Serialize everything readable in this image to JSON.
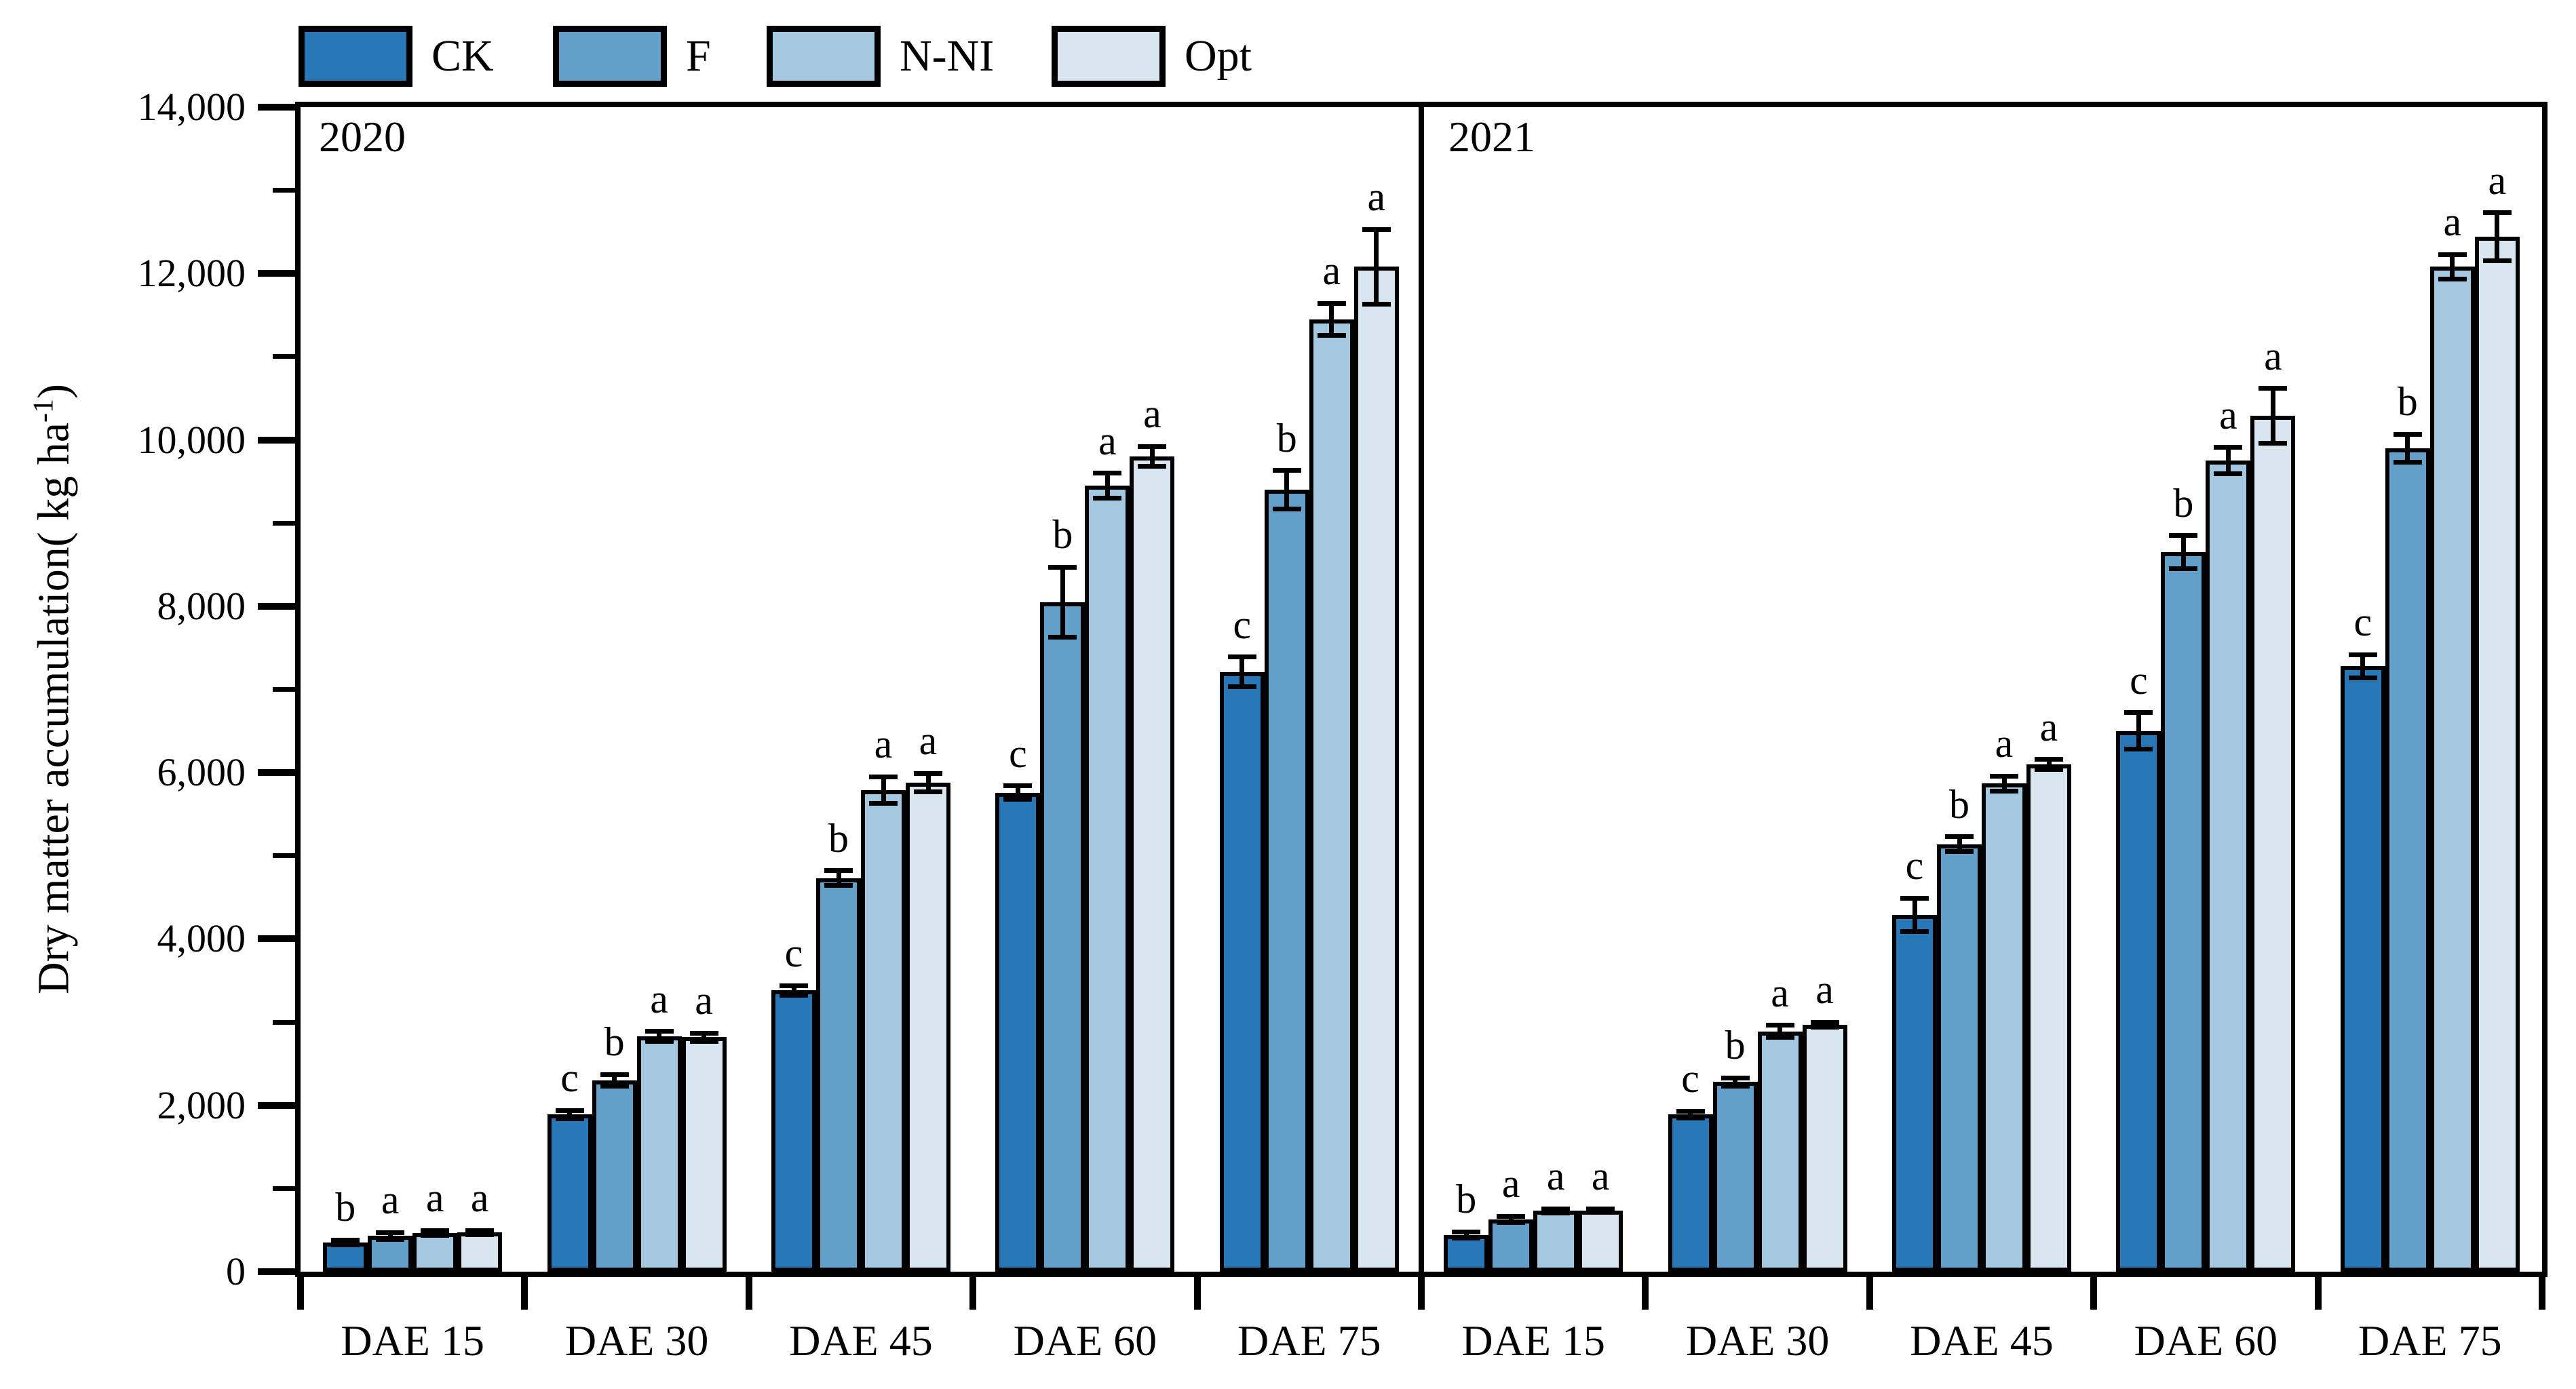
{
  "figure": {
    "background": "#ffffff",
    "axis_color": "#000000"
  },
  "legend": {
    "items": [
      {
        "label": "CK",
        "color": "#2878b8",
        "x": 440
      },
      {
        "label": "F",
        "color": "#62a0c9",
        "x": 815
      },
      {
        "label": "N-NI",
        "color": "#a3c8df",
        "x": 1130
      },
      {
        "label": "Opt",
        "color": "#d9e6f0",
        "x": 1550
      }
    ]
  },
  "y_axis": {
    "title_main": "Dry matter accumulation(  kg ha",
    "title_sup": "-1",
    "title_close": ")",
    "tick_labels": [
      "0",
      "2,000",
      "4,000",
      "6,000",
      "8,000",
      "10,000",
      "12,000",
      "14,000"
    ]
  },
  "chart_data": {
    "type": "bar",
    "title": "",
    "xlabel": "",
    "ylabel": "Dry matter accumulation( kg ha-1)",
    "ylim": [
      0,
      14000
    ],
    "ytick_step": 2000,
    "yminor_step": 1000,
    "grid": false,
    "legend_position": "top-left",
    "categories": [
      "DAE 15",
      "DAE 30",
      "DAE 45",
      "DAE 60",
      "DAE 75"
    ],
    "series_names": [
      "CK",
      "F",
      "N-NI",
      "Opt"
    ],
    "series_colors": [
      "#2878b8",
      "#62a0c9",
      "#a3c8df",
      "#d9e6f0"
    ],
    "panels": [
      {
        "year": "2020",
        "groups": [
          {
            "category": "DAE 15",
            "bars": [
              {
                "series": "CK",
                "value": 350,
                "err": 30,
                "letter": "b"
              },
              {
                "series": "F",
                "value": 430,
                "err": 40,
                "letter": "a"
              },
              {
                "series": "N-NI",
                "value": 465,
                "err": 30,
                "letter": "a"
              },
              {
                "series": "Opt",
                "value": 470,
                "err": 25,
                "letter": "a"
              }
            ]
          },
          {
            "category": "DAE 30",
            "bars": [
              {
                "series": "CK",
                "value": 1890,
                "err": 50,
                "letter": "c"
              },
              {
                "series": "F",
                "value": 2300,
                "err": 70,
                "letter": "b"
              },
              {
                "series": "N-NI",
                "value": 2830,
                "err": 60,
                "letter": "a"
              },
              {
                "series": "Opt",
                "value": 2820,
                "err": 50,
                "letter": "a"
              }
            ]
          },
          {
            "category": "DAE 45",
            "bars": [
              {
                "series": "CK",
                "value": 3380,
                "err": 60,
                "letter": "c"
              },
              {
                "series": "F",
                "value": 4730,
                "err": 90,
                "letter": "b"
              },
              {
                "series": "N-NI",
                "value": 5790,
                "err": 160,
                "letter": "a"
              },
              {
                "series": "Opt",
                "value": 5880,
                "err": 110,
                "letter": "a"
              }
            ]
          },
          {
            "category": "DAE 60",
            "bars": [
              {
                "series": "CK",
                "value": 5760,
                "err": 80,
                "letter": "c"
              },
              {
                "series": "F",
                "value": 8050,
                "err": 420,
                "letter": "b"
              },
              {
                "series": "N-NI",
                "value": 9450,
                "err": 150,
                "letter": "a"
              },
              {
                "series": "Opt",
                "value": 9800,
                "err": 120,
                "letter": "a"
              }
            ]
          },
          {
            "category": "DAE 75",
            "bars": [
              {
                "series": "CK",
                "value": 7210,
                "err": 180,
                "letter": "c"
              },
              {
                "series": "F",
                "value": 9400,
                "err": 230,
                "letter": "b"
              },
              {
                "series": "N-NI",
                "value": 11450,
                "err": 190,
                "letter": "a"
              },
              {
                "series": "Opt",
                "value": 12080,
                "err": 450,
                "letter": "a"
              }
            ]
          }
        ]
      },
      {
        "year": "2021",
        "groups": [
          {
            "category": "DAE 15",
            "bars": [
              {
                "series": "CK",
                "value": 440,
                "err": 40,
                "letter": "b"
              },
              {
                "series": "F",
                "value": 630,
                "err": 35,
                "letter": "a"
              },
              {
                "series": "N-NI",
                "value": 730,
                "err": 25,
                "letter": "a"
              },
              {
                "series": "Opt",
                "value": 735,
                "err": 20,
                "letter": "a"
              }
            ]
          },
          {
            "category": "DAE 30",
            "bars": [
              {
                "series": "CK",
                "value": 1890,
                "err": 40,
                "letter": "c"
              },
              {
                "series": "F",
                "value": 2280,
                "err": 50,
                "letter": "b"
              },
              {
                "series": "N-NI",
                "value": 2890,
                "err": 70,
                "letter": "a"
              },
              {
                "series": "Opt",
                "value": 2970,
                "err": 30,
                "letter": "a"
              }
            ]
          },
          {
            "category": "DAE 45",
            "bars": [
              {
                "series": "CK",
                "value": 4290,
                "err": 200,
                "letter": "c"
              },
              {
                "series": "F",
                "value": 5140,
                "err": 90,
                "letter": "b"
              },
              {
                "series": "N-NI",
                "value": 5870,
                "err": 90,
                "letter": "a"
              },
              {
                "series": "Opt",
                "value": 6100,
                "err": 60,
                "letter": "a"
              }
            ]
          },
          {
            "category": "DAE 60",
            "bars": [
              {
                "series": "CK",
                "value": 6500,
                "err": 220,
                "letter": "c"
              },
              {
                "series": "F",
                "value": 8650,
                "err": 200,
                "letter": "b"
              },
              {
                "series": "N-NI",
                "value": 9750,
                "err": 160,
                "letter": "a"
              },
              {
                "series": "Opt",
                "value": 10290,
                "err": 330,
                "letter": "a"
              }
            ]
          },
          {
            "category": "DAE 75",
            "bars": [
              {
                "series": "CK",
                "value": 7280,
                "err": 140,
                "letter": "c"
              },
              {
                "series": "F",
                "value": 9900,
                "err": 170,
                "letter": "b"
              },
              {
                "series": "N-NI",
                "value": 12080,
                "err": 150,
                "letter": "a"
              },
              {
                "series": "Opt",
                "value": 12440,
                "err": 290,
                "letter": "a"
              }
            ]
          }
        ]
      }
    ]
  }
}
